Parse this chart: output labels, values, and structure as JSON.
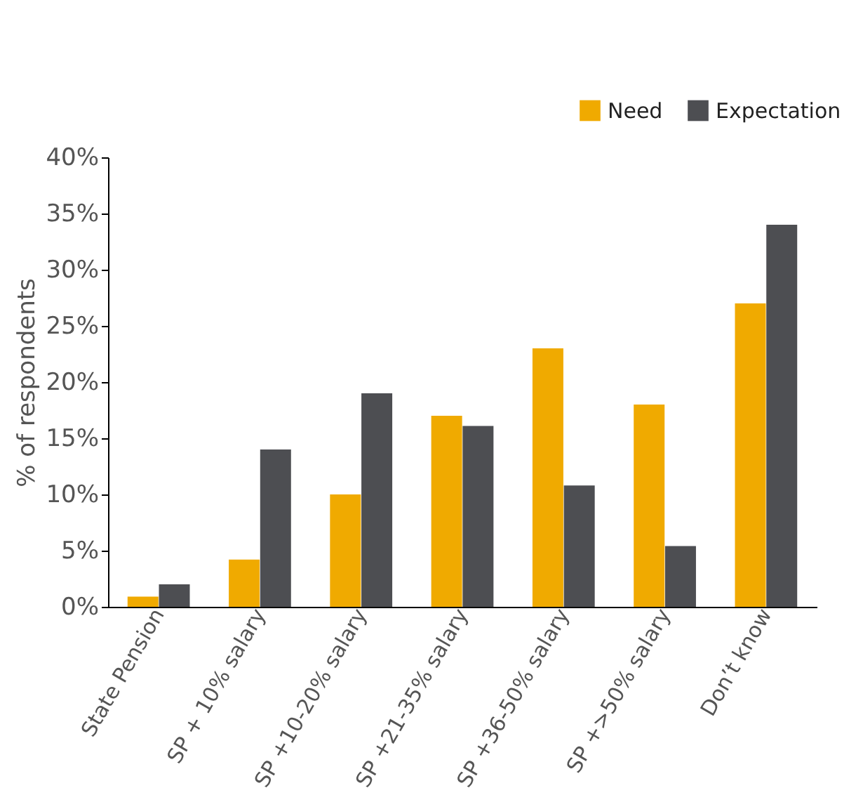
{
  "chart_data": {
    "type": "bar",
    "ylabel": "% of respondents",
    "categories": [
      "State Pension",
      "SP + 10% salary",
      "SP +10-20% salary",
      "SP +21-35% salary",
      "SP +36-50% salary",
      "SP +>50% salary",
      "Don’t know"
    ],
    "series": [
      {
        "name": "Need",
        "color": "#f0aa00",
        "values": [
          0.9,
          4.2,
          10,
          17,
          23,
          18,
          27
        ]
      },
      {
        "name": "Expectation",
        "color": "#4d4e52",
        "values": [
          2,
          14,
          19,
          16.1,
          10.8,
          5.4,
          34
        ]
      }
    ],
    "ylim": [
      0,
      40
    ],
    "yticks": [
      {
        "value": 0,
        "label": "0%"
      },
      {
        "value": 5,
        "label": "5%"
      },
      {
        "value": 10,
        "label": "10%"
      },
      {
        "value": 15,
        "label": "15%"
      },
      {
        "value": 20,
        "label": "20%"
      },
      {
        "value": 25,
        "label": "25%"
      },
      {
        "value": 30,
        "label": "30%"
      },
      {
        "value": 35,
        "label": "35%"
      },
      {
        "value": 40,
        "label": "40%"
      }
    ],
    "grid": false,
    "legend": "top right"
  }
}
